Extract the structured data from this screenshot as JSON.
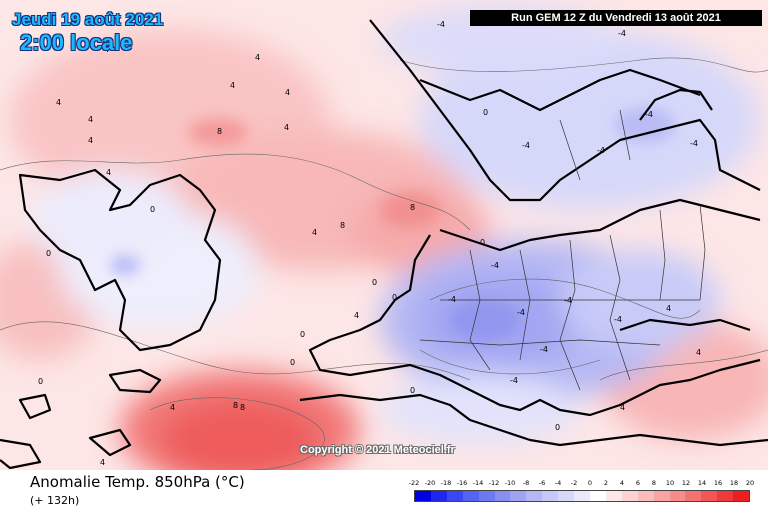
{
  "header": {
    "date": "Jeudi 19 août 2021",
    "time": "2:00 locale",
    "run": "Run GEM 12 Z du Vendredi 13 août 2021"
  },
  "map": {
    "copyright": "Copyright © 2021 Meteociel.fr",
    "contour_labels": [
      "4",
      "4",
      "4",
      "4",
      "4",
      "4",
      "4",
      "4",
      "4",
      "8",
      "8",
      "8",
      "8",
      "4",
      "0",
      "0",
      "0",
      "0",
      "0",
      "0",
      "0",
      "0",
      "-4",
      "-4",
      "-4",
      "-4",
      "-4",
      "-4",
      "-4",
      "-4",
      "-4",
      "-4",
      "-4",
      "-4",
      "-4",
      "4",
      "4",
      "4",
      "4",
      "4",
      "0",
      "0",
      "0",
      "4",
      "4",
      "8"
    ]
  },
  "footer": {
    "variable": "Anomalie Temp. 850hPa (°C)",
    "lead": "(+ 132h)"
  },
  "legend": {
    "ticks": [
      "-22",
      "-20",
      "-18",
      "-16",
      "-14",
      "-12",
      "-10",
      "-8",
      "-6",
      "-4",
      "-2",
      "0",
      "2",
      "4",
      "6",
      "8",
      "10",
      "12",
      "14",
      "16",
      "18",
      "20"
    ],
    "colors": [
      "#0000e0",
      "#1f26f0",
      "#3a48f4",
      "#5463f2",
      "#6e79f0",
      "#888ff2",
      "#9ea3f4",
      "#b4b6f6",
      "#c6c8f8",
      "#d8d9fa",
      "#eaeafc",
      "#ffffff",
      "#fde8e8",
      "#fcd2d2",
      "#fabcbc",
      "#f8a4a4",
      "#f68c8c",
      "#f47272",
      "#f25656",
      "#f03a3a",
      "#ee1e1e"
    ]
  }
}
